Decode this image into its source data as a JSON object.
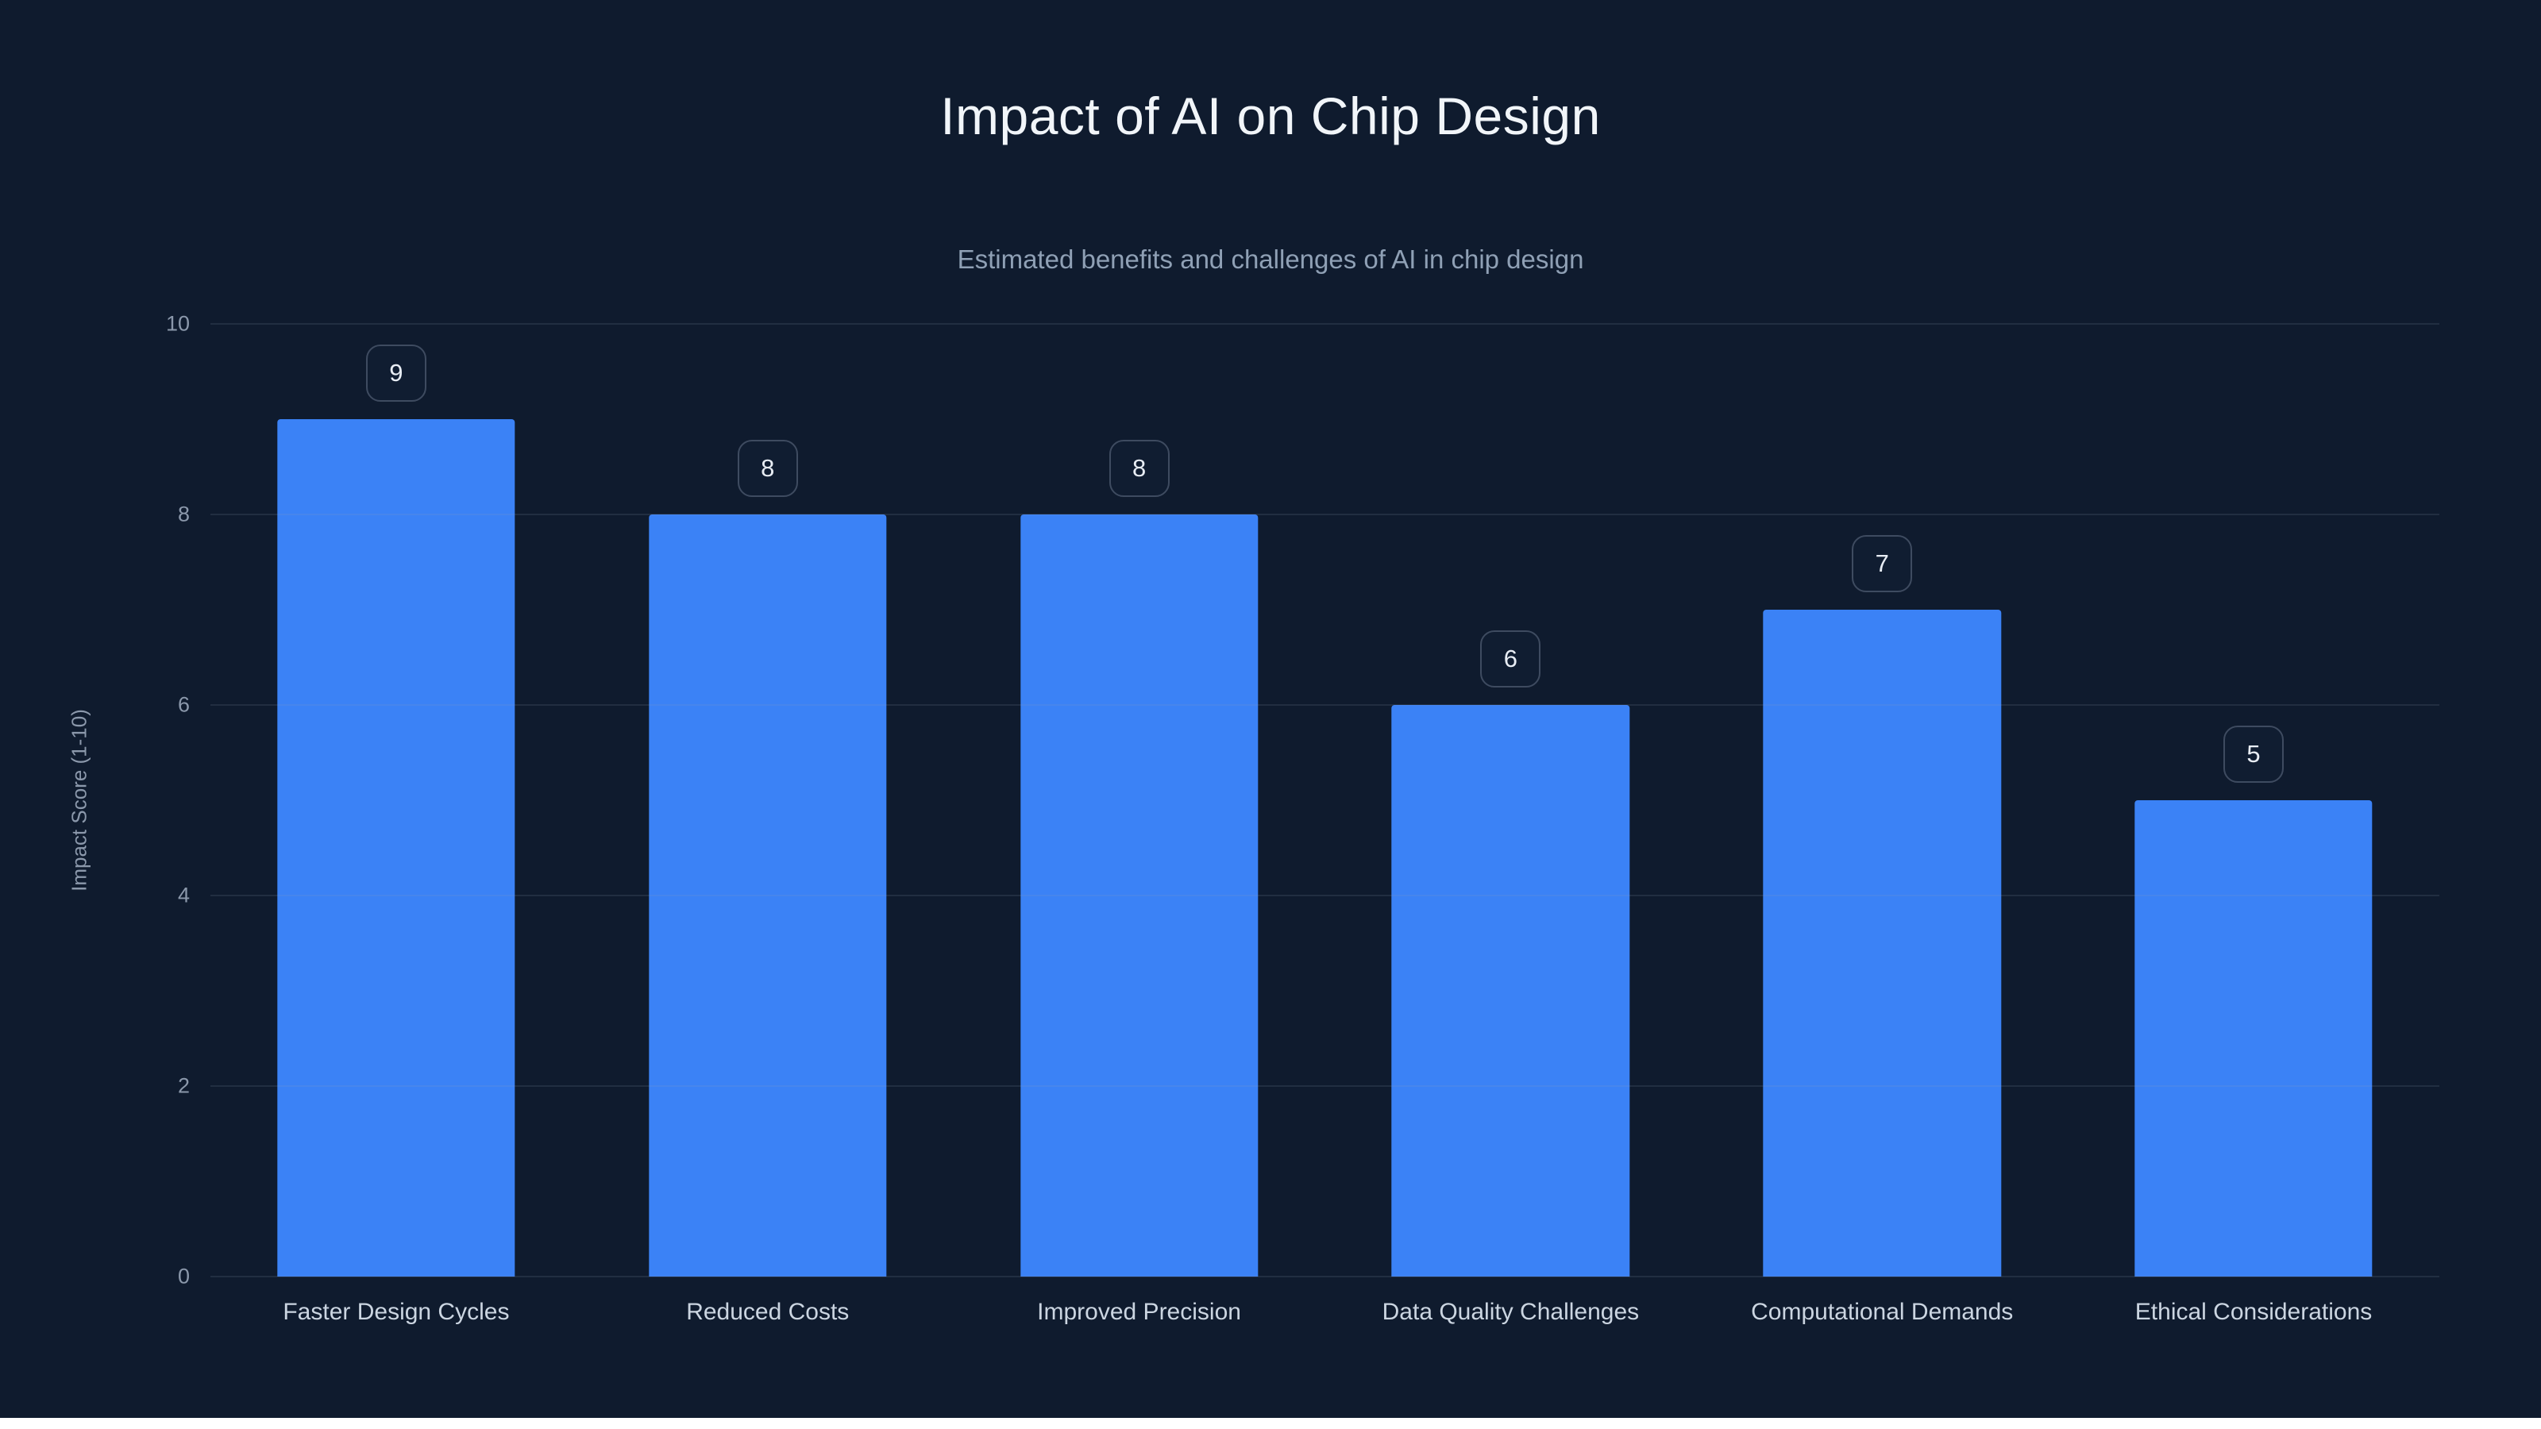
{
  "chart_data": {
    "type": "bar",
    "title": "Impact of AI on Chip Design",
    "subtitle": "Estimated benefits and challenges of AI in chip design",
    "ylabel": "Impact Score (1-10)",
    "xlabel": "",
    "categories": [
      "Faster Design Cycles",
      "Reduced Costs",
      "Improved Precision",
      "Data Quality Challenges",
      "Computational Demands",
      "Ethical Considerations"
    ],
    "values": [
      9,
      8,
      8,
      6,
      7,
      5
    ],
    "value_labels": [
      "9",
      "8",
      "8",
      "6",
      "7",
      "5"
    ],
    "ylim": [
      0,
      10
    ],
    "yticks": [
      "0",
      "2",
      "4",
      "6",
      "8",
      "10"
    ],
    "grid": true,
    "legend": false,
    "colors": {
      "background": "#0f1b2e",
      "bar": "#3b82f6",
      "title": "#f1f5f9",
      "subtitle": "#8fa0b5",
      "axis_text": "#8b98ab",
      "category_text": "#cbd5e1",
      "gridline": "rgba(148,163,184,0.14)",
      "badge_border": "#3e4b60",
      "badge_text": "#e8edf4"
    }
  }
}
